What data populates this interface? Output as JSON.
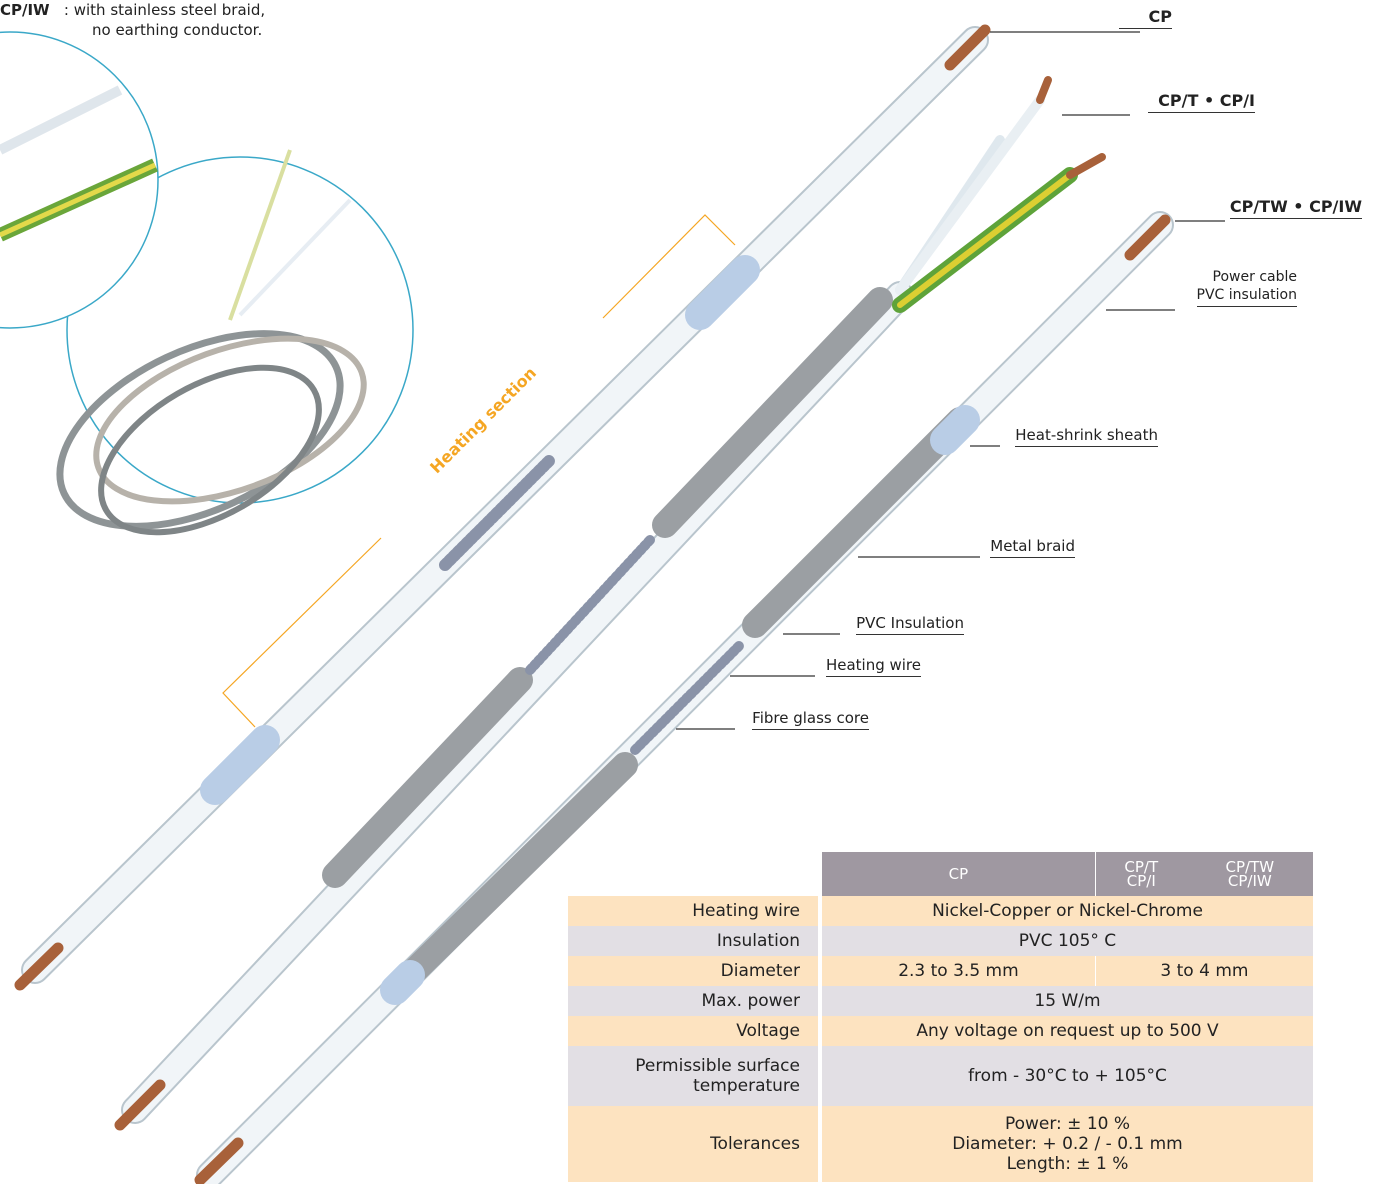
{
  "note": {
    "code": "CP/IW",
    "lines": [
      ": with stainless steel braid,",
      "no earthing conductor."
    ]
  },
  "variants": [
    "CP",
    "CP/T • CP/I",
    "CP/TW • CP/IW"
  ],
  "power_cable": [
    "Power cable",
    "PVC insulation"
  ],
  "callouts": [
    "Heat-shrink sheath",
    "Metal braid",
    "PVC Insulation",
    "Heating wire",
    "Fibre glass core"
  ],
  "heating_section": "Heating section",
  "table": {
    "header": [
      "CP",
      [
        "CP/T",
        "CP/I"
      ],
      [
        "CP/TW",
        "CP/IW"
      ]
    ],
    "rows": [
      [
        "Heating wire",
        "Nickel-Copper or Nickel-Chrome"
      ],
      [
        "Insulation",
        "PVC 105° C"
      ],
      [
        "Diameter",
        "2.3 to 3.5 mm",
        "3 to 4 mm"
      ],
      [
        "Max. power",
        "15 W/m"
      ],
      [
        "Voltage",
        "Any voltage on request up to 500 V"
      ],
      [
        [
          "Permissible surface",
          "temperature"
        ],
        "from - 30°C to + 105°C"
      ],
      [
        "Tolerances",
        [
          "Power: ± 10 %",
          "Diameter: + 0.2 / - 0.1 mm",
          "Length: ± 1 %"
        ]
      ]
    ]
  }
}
